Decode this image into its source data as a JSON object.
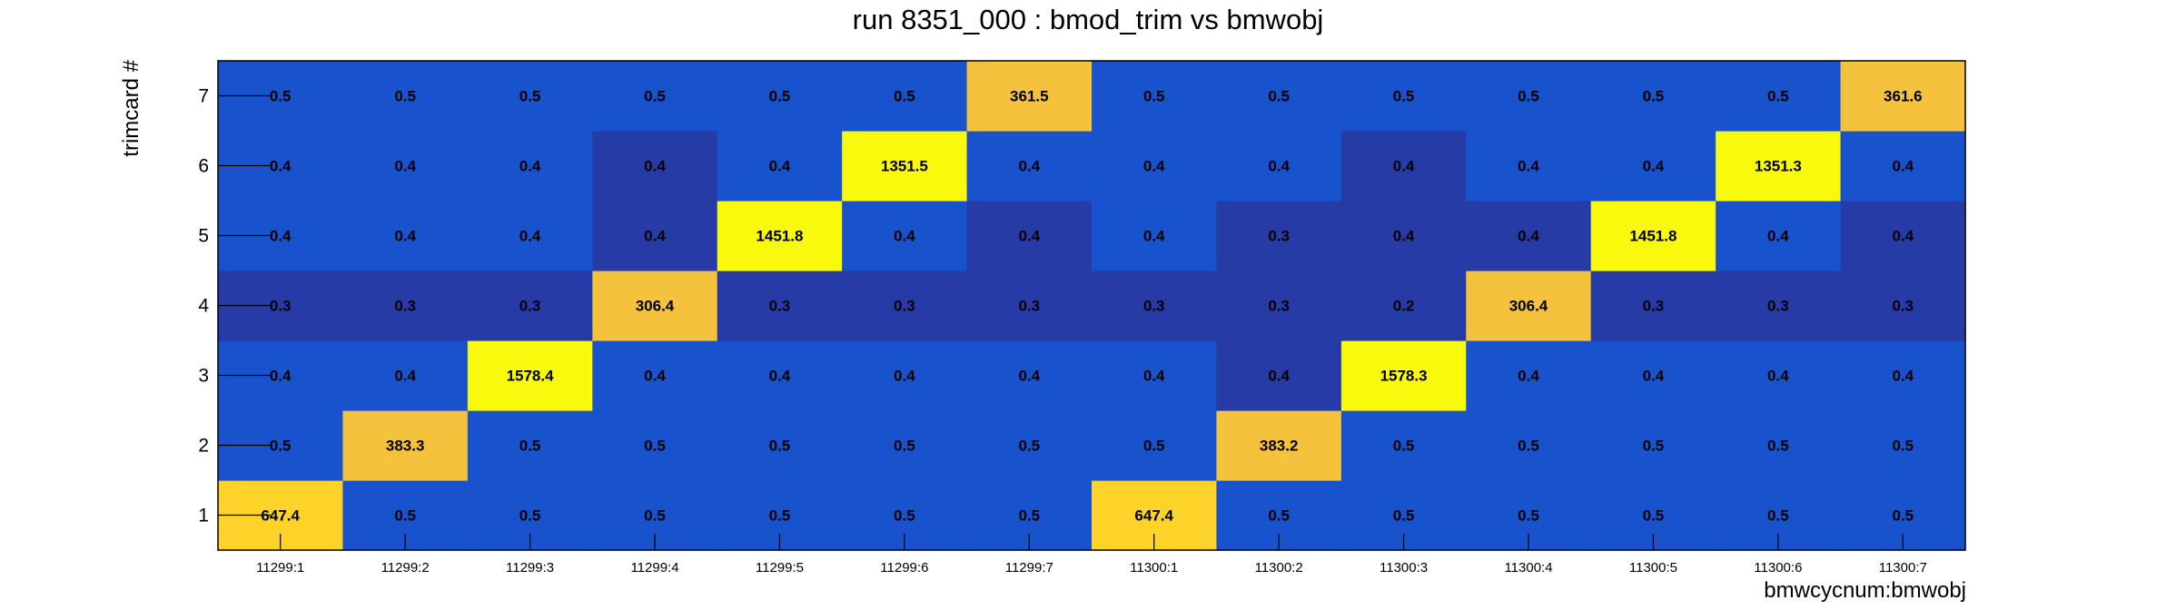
{
  "chart_data": {
    "type": "heatmap",
    "title": "run 8351_000 : bmod_trim vs bmwobj",
    "xlabel": "bmwcycnum:bmwobj",
    "ylabel": "trimcard #",
    "x_categories": [
      "11299:1",
      "11299:2",
      "11299:3",
      "11299:4",
      "11299:5",
      "11299:6",
      "11299:7",
      "11300:1",
      "11300:2",
      "11300:3",
      "11300:4",
      "11300:5",
      "11300:6",
      "11300:7"
    ],
    "y_categories": [
      "1",
      "2",
      "3",
      "4",
      "5",
      "6",
      "7"
    ],
    "values": [
      [
        647.4,
        0.5,
        0.5,
        0.5,
        0.5,
        0.5,
        0.5,
        647.4,
        0.5,
        0.5,
        0.5,
        0.5,
        0.5,
        0.5
      ],
      [
        0.5,
        383.3,
        0.5,
        0.5,
        0.5,
        0.5,
        0.5,
        0.5,
        383.2,
        0.5,
        0.5,
        0.5,
        0.5,
        0.5
      ],
      [
        0.4,
        0.4,
        1578.4,
        0.4,
        0.4,
        0.4,
        0.4,
        0.4,
        0.4,
        1578.3,
        0.4,
        0.4,
        0.4,
        0.4
      ],
      [
        0.3,
        0.3,
        0.3,
        306.4,
        0.3,
        0.3,
        0.3,
        0.3,
        0.3,
        0.2,
        306.4,
        0.3,
        0.3,
        0.3
      ],
      [
        0.4,
        0.4,
        0.4,
        0.4,
        1451.8,
        0.4,
        0.4,
        0.4,
        0.3,
        0.4,
        0.4,
        1451.8,
        0.4,
        0.4
      ],
      [
        0.4,
        0.4,
        0.4,
        0.4,
        0.4,
        1351.5,
        0.4,
        0.4,
        0.4,
        0.4,
        0.4,
        0.4,
        1351.3,
        0.4
      ],
      [
        0.5,
        0.5,
        0.5,
        0.5,
        0.5,
        0.5,
        361.5,
        0.5,
        0.5,
        0.5,
        0.5,
        0.5,
        0.5,
        361.6
      ]
    ],
    "colors": {
      "dark_blue": "#263ba6",
      "blue": "#1852cc",
      "orange": "#f4c23c",
      "gold": "#fdd32a",
      "yellow": "#f9f90e"
    },
    "cell_colors": [
      [
        "gold",
        "blue",
        "blue",
        "blue",
        "blue",
        "blue",
        "blue",
        "gold",
        "blue",
        "blue",
        "blue",
        "blue",
        "blue",
        "blue"
      ],
      [
        "blue",
        "orange",
        "blue",
        "blue",
        "blue",
        "blue",
        "blue",
        "blue",
        "orange",
        "blue",
        "blue",
        "blue",
        "blue",
        "blue"
      ],
      [
        "blue",
        "blue",
        "yellow",
        "blue",
        "blue",
        "blue",
        "blue",
        "blue",
        "dark_blue",
        "yellow",
        "blue",
        "blue",
        "blue",
        "blue"
      ],
      [
        "dark_blue",
        "dark_blue",
        "dark_blue",
        "orange",
        "dark_blue",
        "dark_blue",
        "dark_blue",
        "dark_blue",
        "dark_blue",
        "dark_blue",
        "orange",
        "dark_blue",
        "dark_blue",
        "dark_blue"
      ],
      [
        "blue",
        "blue",
        "blue",
        "dark_blue",
        "yellow",
        "blue",
        "dark_blue",
        "blue",
        "dark_blue",
        "dark_blue",
        "dark_blue",
        "yellow",
        "blue",
        "dark_blue"
      ],
      [
        "blue",
        "blue",
        "blue",
        "dark_blue",
        "blue",
        "yellow",
        "blue",
        "blue",
        "blue",
        "dark_blue",
        "blue",
        "blue",
        "yellow",
        "blue"
      ],
      [
        "blue",
        "blue",
        "blue",
        "blue",
        "blue",
        "blue",
        "orange",
        "blue",
        "blue",
        "blue",
        "blue",
        "blue",
        "blue",
        "orange"
      ]
    ]
  }
}
